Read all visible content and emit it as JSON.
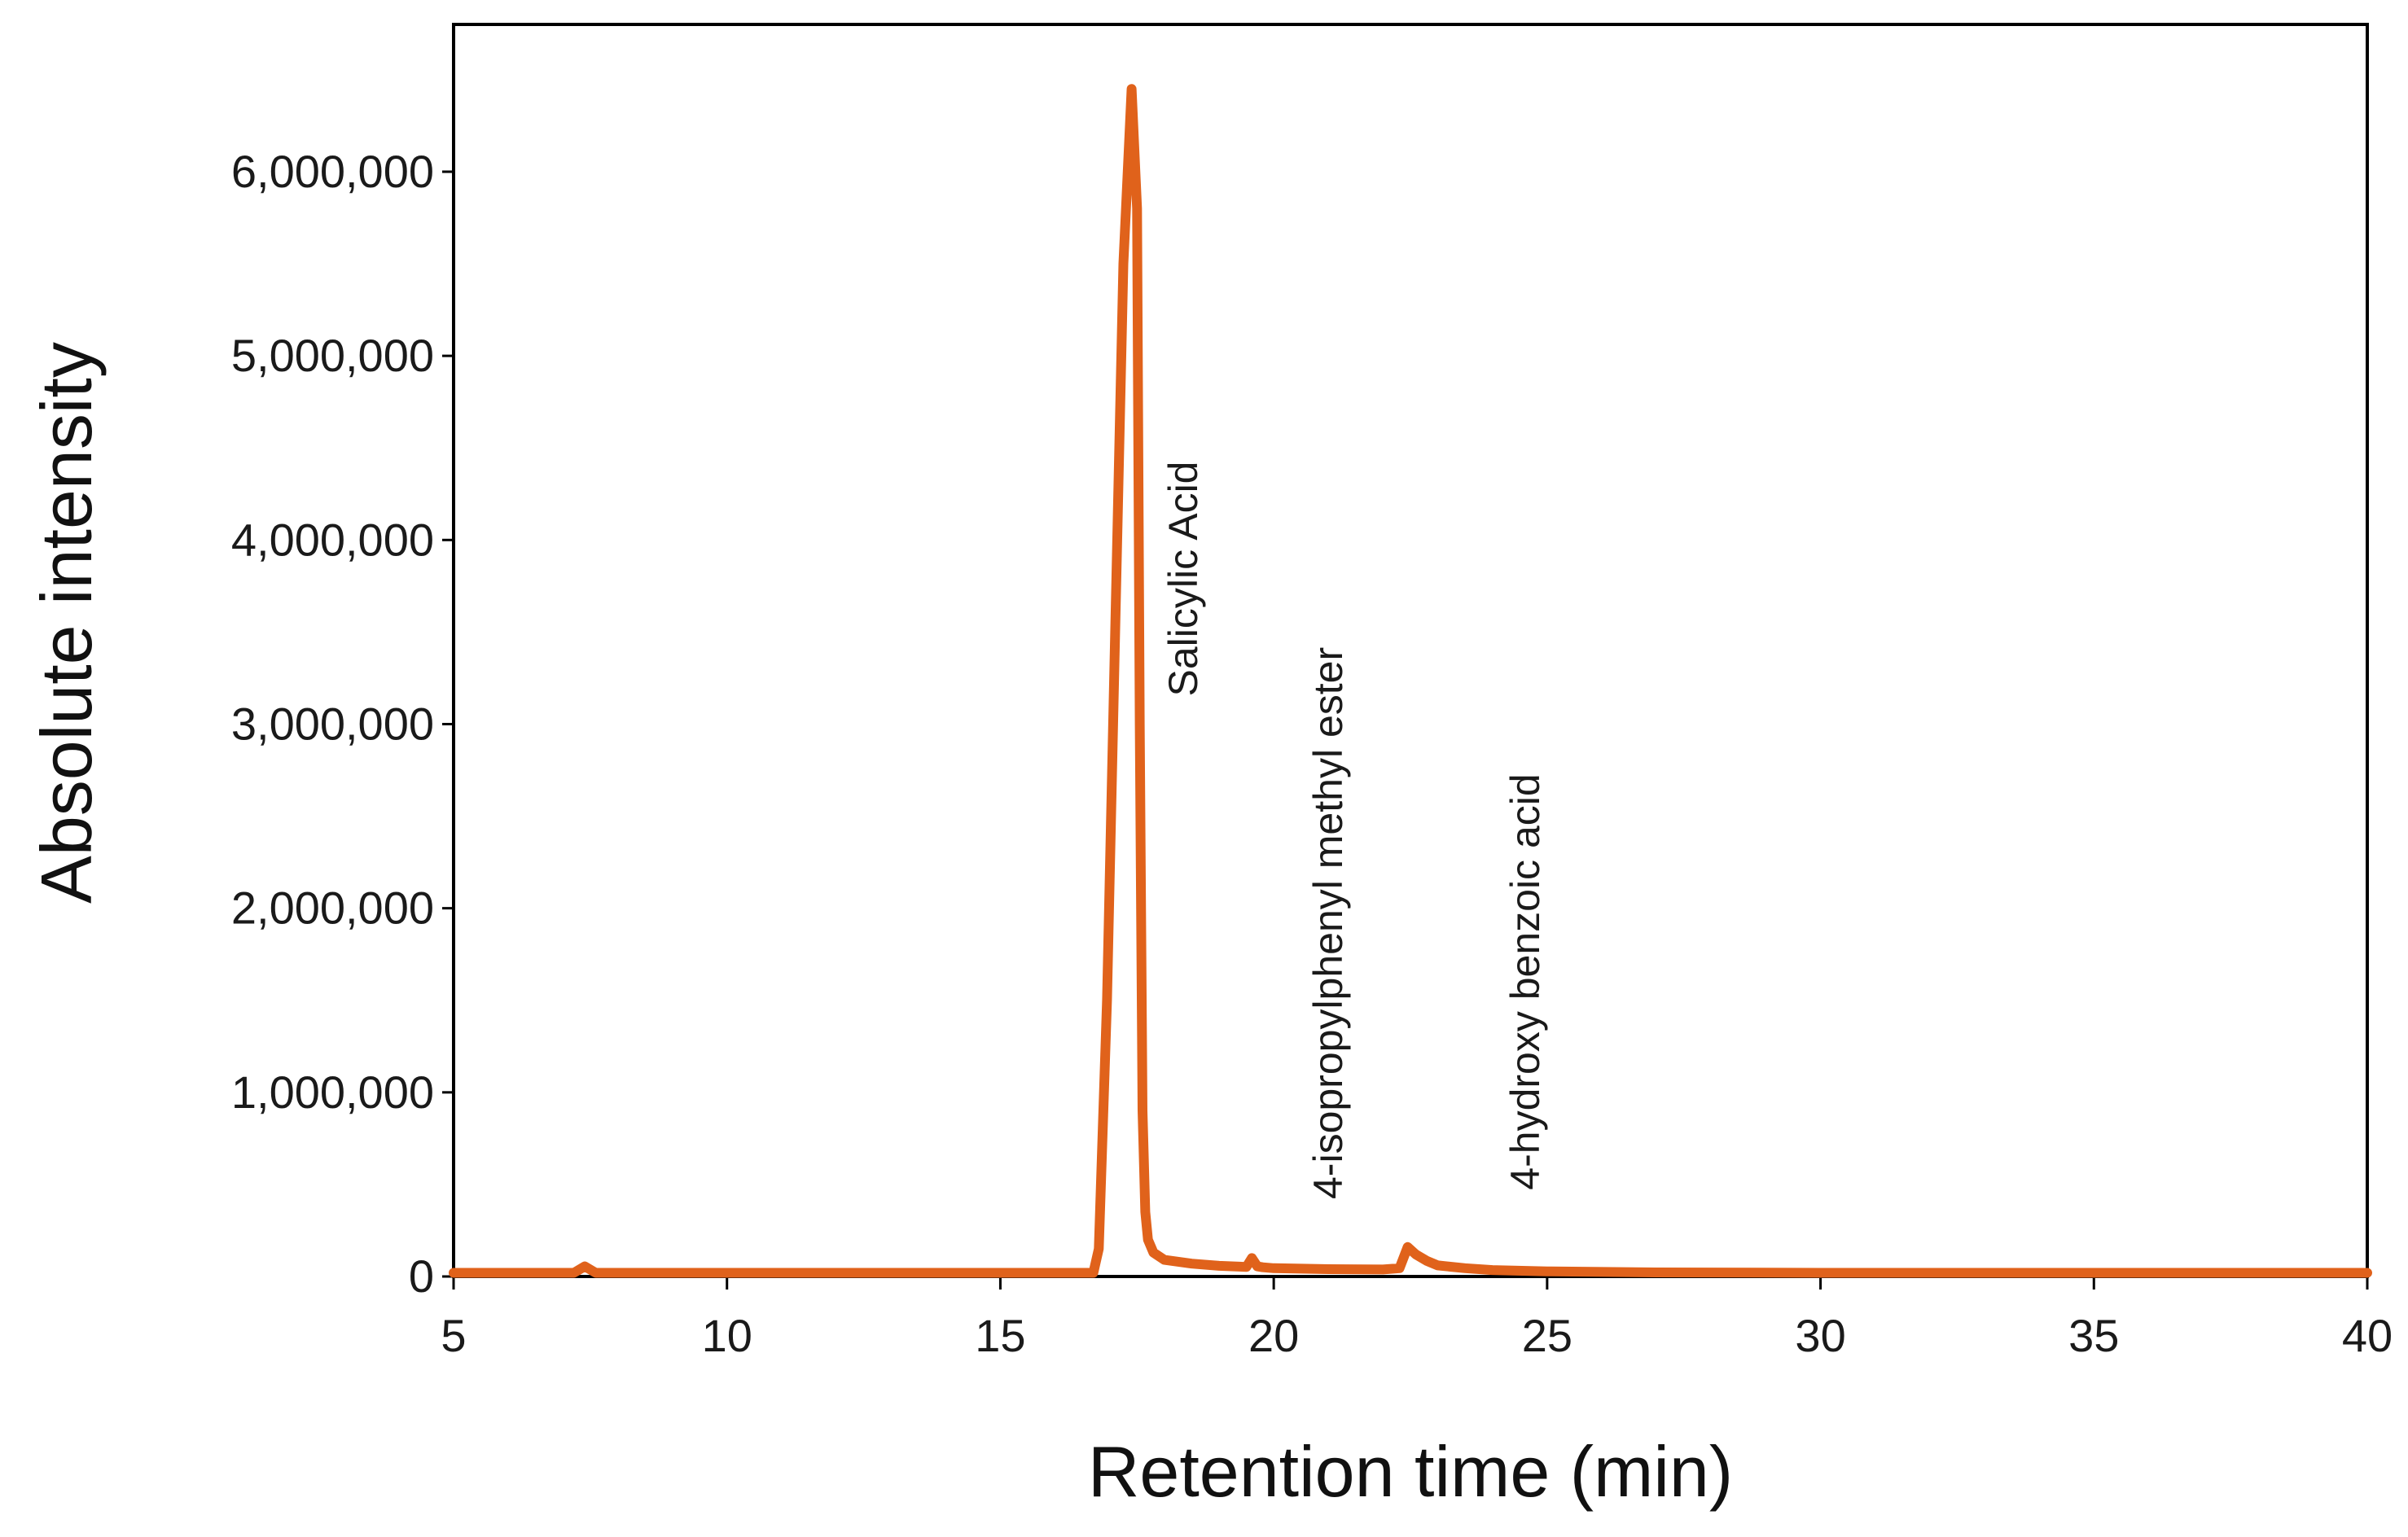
{
  "chart_data": {
    "type": "line",
    "title": "",
    "xlabel": "Retention time (min)",
    "ylabel": "Absolute intensity",
    "xlim": [
      5,
      40
    ],
    "ylim": [
      0,
      6800000
    ],
    "xticks": [
      5,
      10,
      15,
      20,
      25,
      30,
      35,
      40
    ],
    "xtick_labels": [
      "5",
      "10",
      "15",
      "20",
      "25",
      "30",
      "35",
      "40"
    ],
    "yticks": [
      0,
      1000000,
      2000000,
      3000000,
      4000000,
      5000000,
      6000000
    ],
    "ytick_labels": [
      "0",
      "1,000,000",
      "2,000,000",
      "3,000,000",
      "4,000,000",
      "5,000,000",
      "6,000,000"
    ],
    "grid": false,
    "legend": "none",
    "color": "#e0621b",
    "series": [
      {
        "x": [
          5,
          7.2,
          7.4,
          7.6,
          10,
          15,
          16.7,
          16.8,
          16.95,
          17.1,
          17.25,
          17.4,
          17.5,
          17.55,
          17.6,
          17.65,
          17.7,
          17.8,
          18,
          18.5,
          19,
          19.5,
          19.6,
          19.7,
          19.8,
          20,
          21,
          22,
          22.3,
          22.45,
          22.6,
          22.8,
          23,
          23.5,
          24,
          25,
          27,
          30,
          35,
          40
        ],
        "y": [
          20000,
          20000,
          55000,
          20000,
          20000,
          20000,
          20000,
          150000,
          1500000,
          3500000,
          5500000,
          6450000,
          5800000,
          3000000,
          900000,
          350000,
          200000,
          130000,
          90000,
          70000,
          58000,
          52000,
          100000,
          55000,
          50000,
          45000,
          40000,
          38000,
          45000,
          160000,
          120000,
          85000,
          60000,
          45000,
          35000,
          28000,
          22000,
          20000,
          20000,
          20000
        ]
      }
    ],
    "annotations": [
      {
        "text": "Salicylic Acid",
        "x": 18.6,
        "y": 3150000
      },
      {
        "text": "4-isopropylphenyl methyl ester",
        "x": 21.25,
        "y": 420000
      },
      {
        "text": "4-hydroxy benzoic acid",
        "x": 24.85,
        "y": 470000
      }
    ]
  }
}
